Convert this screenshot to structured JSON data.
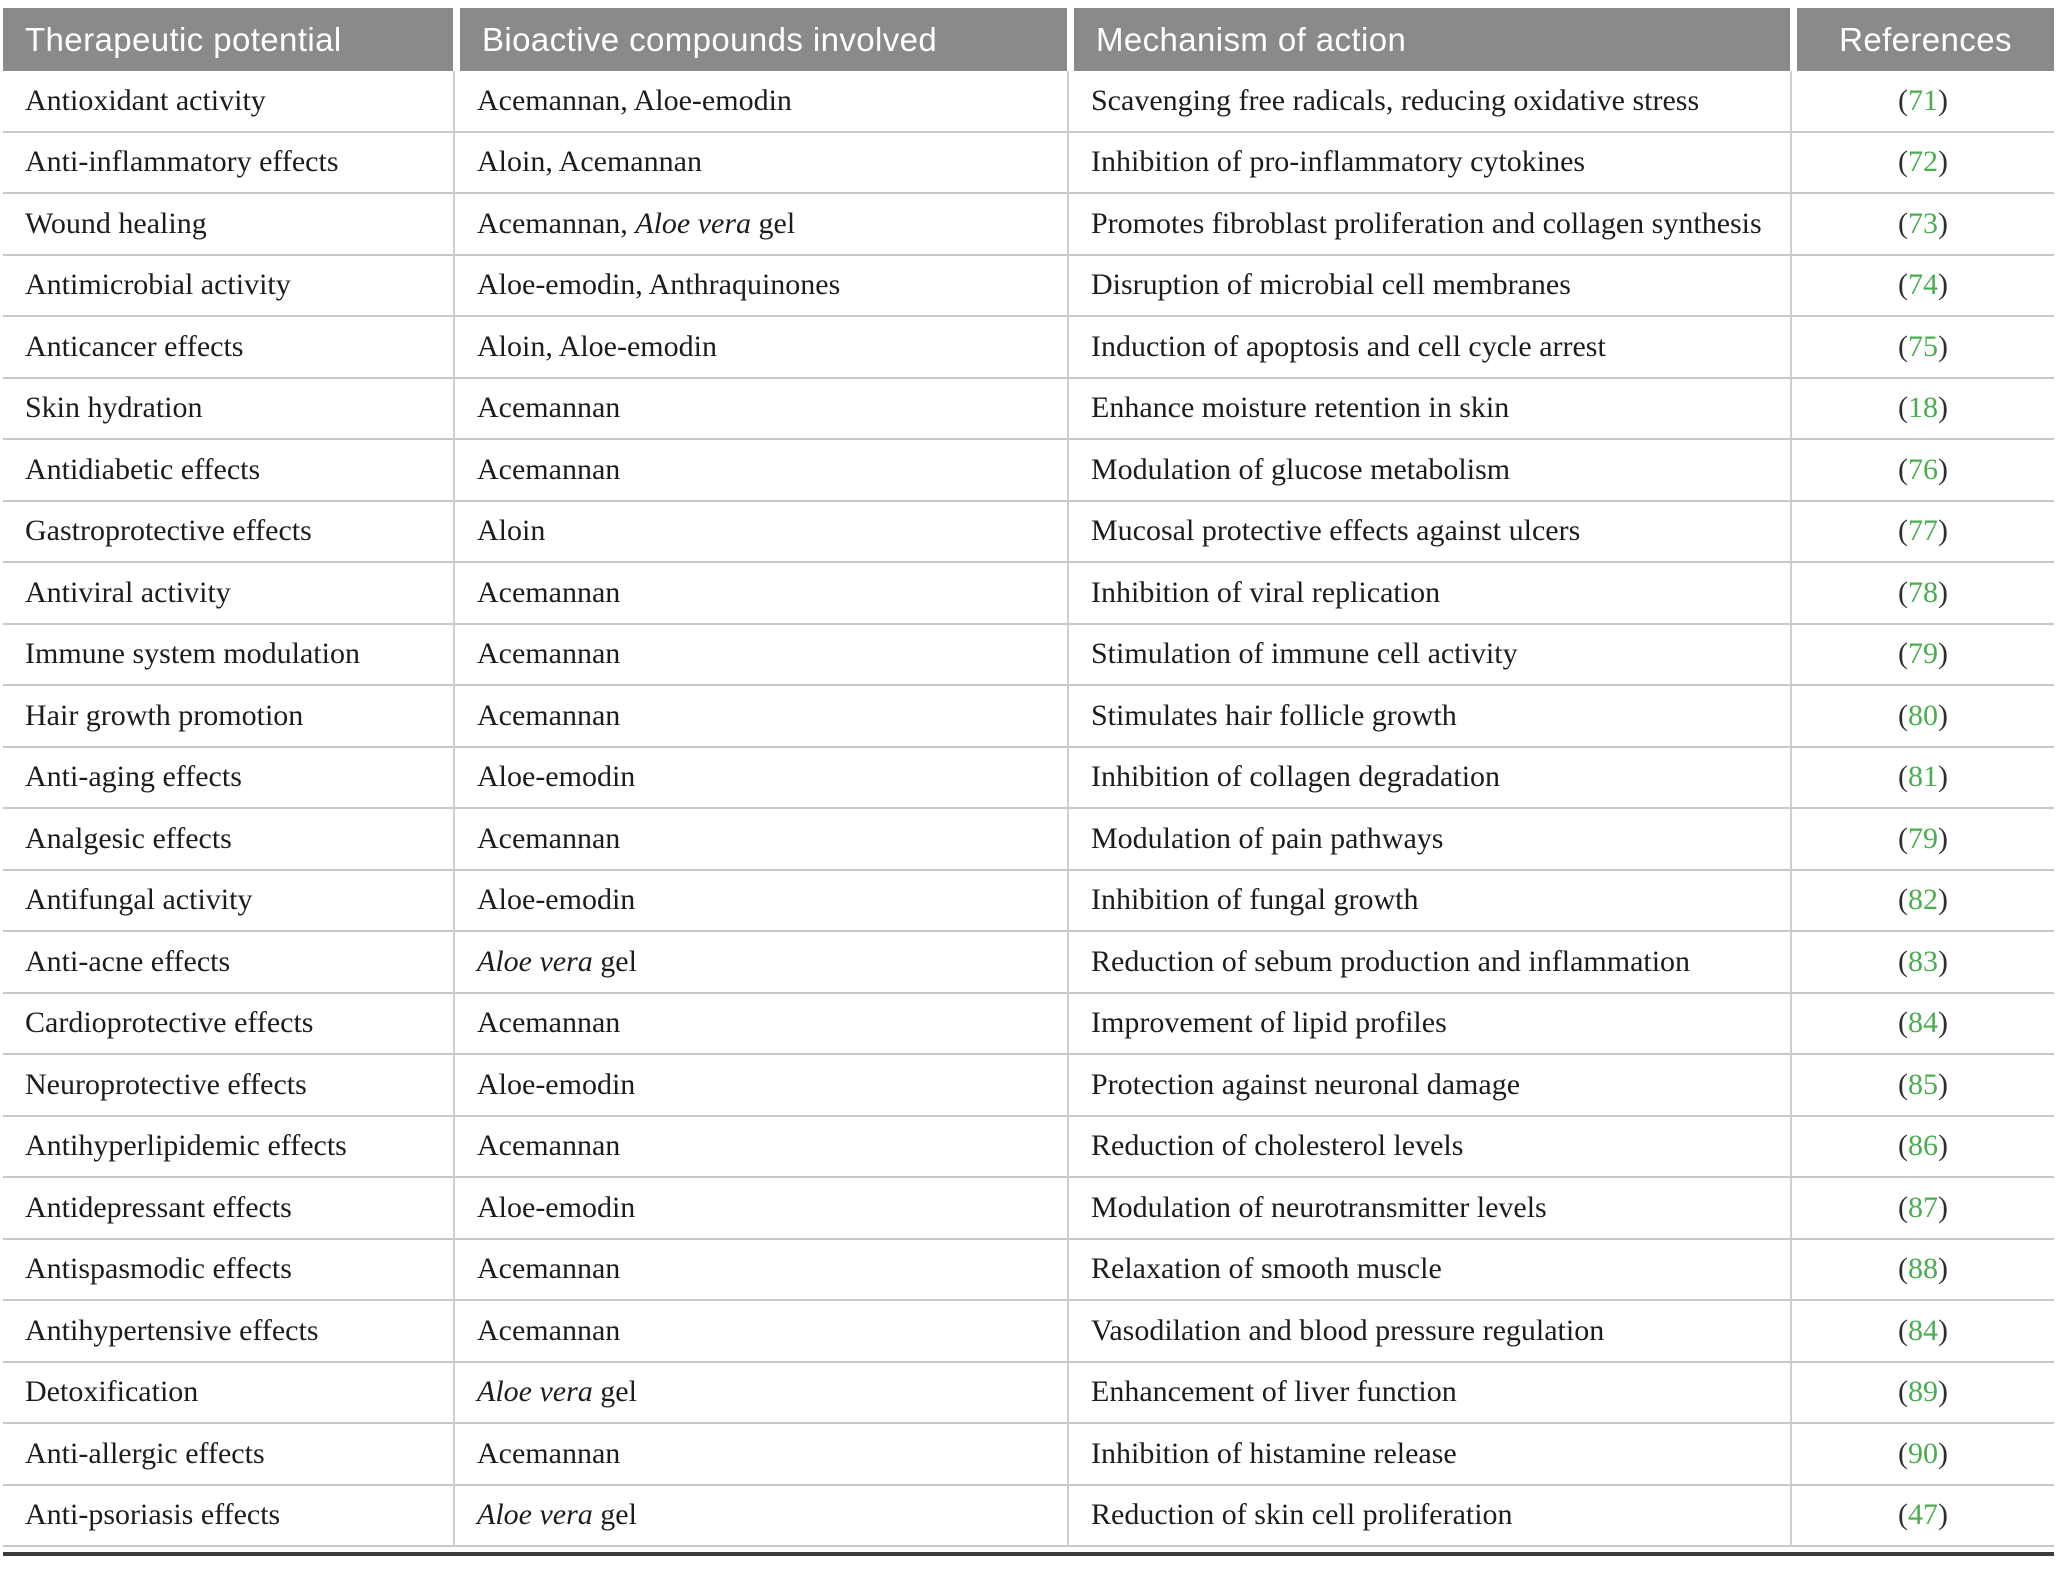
{
  "colors": {
    "header_bg": "#8a8a8a",
    "header_text": "#ffffff",
    "body_text": "#1c1c1c",
    "row_border": "#c9c9c9",
    "reference_green": "#4aad50",
    "bottom_rule": "#3c3c3c"
  },
  "refs": {
    "paren_open": "(",
    "paren_close": ")"
  },
  "table": {
    "columns": [
      "Therapeutic potential",
      "Bioactive compounds involved",
      "Mechanism of action",
      "References"
    ],
    "rows": [
      {
        "potential": "Antioxidant activity",
        "compounds": [
          {
            "text": "Acemannan, Aloe-emodin"
          }
        ],
        "mechanism": "Scavenging free radicals, reducing oxidative stress",
        "ref": "71"
      },
      {
        "potential": "Anti-inflammatory effects",
        "compounds": [
          {
            "text": "Aloin, Acemannan"
          }
        ],
        "mechanism": "Inhibition of pro-inflammatory cytokines",
        "ref": "72"
      },
      {
        "potential": "Wound healing",
        "compounds": [
          {
            "text": "Acemannan, "
          },
          {
            "text": "Aloe vera",
            "italic": true
          },
          {
            "text": " gel"
          }
        ],
        "mechanism": "Promotes fibroblast proliferation and collagen synthesis",
        "ref": "73"
      },
      {
        "potential": "Antimicrobial activity",
        "compounds": [
          {
            "text": "Aloe-emodin, Anthraquinones"
          }
        ],
        "mechanism": "Disruption of microbial cell membranes",
        "ref": "74"
      },
      {
        "potential": "Anticancer effects",
        "compounds": [
          {
            "text": "Aloin, Aloe-emodin"
          }
        ],
        "mechanism": "Induction of apoptosis and cell cycle arrest",
        "ref": "75"
      },
      {
        "potential": "Skin hydration",
        "compounds": [
          {
            "text": "Acemannan"
          }
        ],
        "mechanism": "Enhance moisture retention in skin",
        "ref": "18"
      },
      {
        "potential": "Antidiabetic effects",
        "compounds": [
          {
            "text": "Acemannan"
          }
        ],
        "mechanism": "Modulation of glucose metabolism",
        "ref": "76"
      },
      {
        "potential": "Gastroprotective effects",
        "compounds": [
          {
            "text": "Aloin"
          }
        ],
        "mechanism": "Mucosal protective effects against ulcers",
        "ref": "77"
      },
      {
        "potential": "Antiviral activity",
        "compounds": [
          {
            "text": "Acemannan"
          }
        ],
        "mechanism": "Inhibition of viral replication",
        "ref": "78"
      },
      {
        "potential": "Immune system modulation",
        "compounds": [
          {
            "text": "Acemannan"
          }
        ],
        "mechanism": "Stimulation of immune cell activity",
        "ref": "79"
      },
      {
        "potential": "Hair growth promotion",
        "compounds": [
          {
            "text": "Acemannan"
          }
        ],
        "mechanism": "Stimulates hair follicle growth",
        "ref": "80"
      },
      {
        "potential": "Anti-aging effects",
        "compounds": [
          {
            "text": "Aloe-emodin"
          }
        ],
        "mechanism": "Inhibition of collagen degradation",
        "ref": "81"
      },
      {
        "potential": "Analgesic effects",
        "compounds": [
          {
            "text": "Acemannan"
          }
        ],
        "mechanism": "Modulation of pain pathways",
        "ref": "79"
      },
      {
        "potential": "Antifungal activity",
        "compounds": [
          {
            "text": "Aloe-emodin"
          }
        ],
        "mechanism": "Inhibition of fungal growth",
        "ref": "82"
      },
      {
        "potential": "Anti-acne effects",
        "compounds": [
          {
            "text": "Aloe vera",
            "italic": true
          },
          {
            "text": " gel"
          }
        ],
        "mechanism": "Reduction of sebum production and inflammation",
        "ref": "83"
      },
      {
        "potential": "Cardioprotective effects",
        "compounds": [
          {
            "text": "Acemannan"
          }
        ],
        "mechanism": "Improvement of lipid profiles",
        "ref": "84"
      },
      {
        "potential": "Neuroprotective effects",
        "compounds": [
          {
            "text": "Aloe-emodin"
          }
        ],
        "mechanism": "Protection against neuronal damage",
        "ref": "85"
      },
      {
        "potential": "Antihyperlipidemic effects",
        "compounds": [
          {
            "text": "Acemannan"
          }
        ],
        "mechanism": "Reduction of cholesterol levels",
        "ref": "86"
      },
      {
        "potential": "Antidepressant effects",
        "compounds": [
          {
            "text": "Aloe-emodin"
          }
        ],
        "mechanism": "Modulation of neurotransmitter levels",
        "ref": "87"
      },
      {
        "potential": "Antispasmodic effects",
        "compounds": [
          {
            "text": "Acemannan"
          }
        ],
        "mechanism": "Relaxation of smooth muscle",
        "ref": "88"
      },
      {
        "potential": "Antihypertensive effects",
        "compounds": [
          {
            "text": "Acemannan"
          }
        ],
        "mechanism": "Vasodilation and blood pressure regulation",
        "ref": "84"
      },
      {
        "potential": "Detoxification",
        "compounds": [
          {
            "text": "Aloe vera",
            "italic": true
          },
          {
            "text": " gel"
          }
        ],
        "mechanism": "Enhancement of liver function",
        "ref": "89"
      },
      {
        "potential": "Anti-allergic effects",
        "compounds": [
          {
            "text": "Acemannan"
          }
        ],
        "mechanism": "Inhibition of histamine release",
        "ref": "90"
      },
      {
        "potential": "Anti-psoriasis effects",
        "compounds": [
          {
            "text": "Aloe vera",
            "italic": true
          },
          {
            "text": " gel"
          }
        ],
        "mechanism": "Reduction of skin cell proliferation",
        "ref": "47"
      }
    ]
  }
}
